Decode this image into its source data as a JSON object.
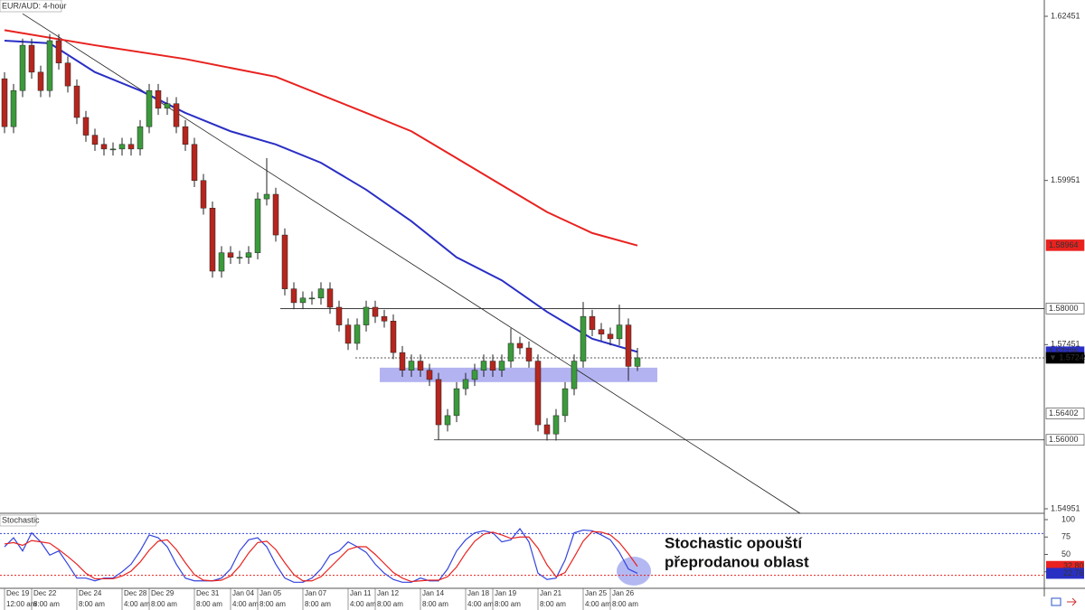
{
  "chart_data": [
    {
      "type": "candlestick",
      "title": "EUR/AUD: 4-hour",
      "open": [
        1.615,
        1.6077,
        1.6132,
        1.6201,
        1.616,
        1.6132,
        1.6208,
        1.6174,
        1.6139,
        1.6091,
        1.6064,
        1.605,
        1.6043,
        1.6043,
        1.605,
        1.6043,
        1.6077,
        1.6132,
        1.6105,
        1.6112,
        1.6077,
        1.605,
        1.5995,
        1.5953,
        1.5857,
        1.5885,
        1.5878,
        1.5878,
        1.5885,
        1.5967,
        1.5974,
        1.5912,
        1.583,
        1.5809,
        1.5816,
        1.5816,
        1.583,
        1.5802,
        1.5775,
        1.5747,
        1.5775,
        1.5802,
        1.5788,
        1.5781,
        1.5733,
        1.5706,
        1.572,
        1.5706,
        1.5692,
        1.5623,
        1.5637,
        1.5678,
        1.5692,
        1.5706,
        1.572,
        1.5706,
        1.572,
        1.5747,
        1.574,
        1.572,
        1.5623,
        1.5609,
        1.5637,
        1.5678,
        1.572,
        1.5788,
        1.5768,
        1.5761,
        1.5754,
        1.5775,
        1.5712
      ],
      "high": [
        1.616,
        1.6142,
        1.6211,
        1.6211,
        1.617,
        1.6218,
        1.6218,
        1.6184,
        1.6149,
        1.6101,
        1.6074,
        1.606,
        1.6053,
        1.606,
        1.606,
        1.6087,
        1.6142,
        1.6142,
        1.6122,
        1.6122,
        1.6087,
        1.606,
        1.6005,
        1.5963,
        1.5895,
        1.5895,
        1.5888,
        1.5895,
        1.5977,
        1.6029,
        1.5984,
        1.5922,
        1.584,
        1.5826,
        1.5826,
        1.584,
        1.584,
        1.5812,
        1.5785,
        1.5785,
        1.5812,
        1.5812,
        1.5798,
        1.5791,
        1.5743,
        1.573,
        1.573,
        1.5716,
        1.5702,
        1.5647,
        1.5688,
        1.5702,
        1.5716,
        1.573,
        1.573,
        1.573,
        1.577,
        1.5757,
        1.575,
        1.573,
        1.5633,
        1.5647,
        1.5688,
        1.573,
        1.581,
        1.5798,
        1.5778,
        1.5771,
        1.5806,
        1.5785,
        1.574
      ],
      "low": [
        1.6067,
        1.6067,
        1.6122,
        1.615,
        1.6122,
        1.6122,
        1.6164,
        1.6129,
        1.6081,
        1.6054,
        1.604,
        1.6033,
        1.6033,
        1.6033,
        1.6033,
        1.6033,
        1.6067,
        1.6095,
        1.6095,
        1.6067,
        1.604,
        1.5985,
        1.5943,
        1.5847,
        1.5847,
        1.5868,
        1.5868,
        1.5868,
        1.5875,
        1.5957,
        1.5902,
        1.582,
        1.5799,
        1.5799,
        1.5806,
        1.5806,
        1.5792,
        1.5765,
        1.5737,
        1.5737,
        1.5765,
        1.5778,
        1.5771,
        1.5723,
        1.5696,
        1.5696,
        1.5696,
        1.5682,
        1.56,
        1.5613,
        1.5627,
        1.5668,
        1.5682,
        1.5696,
        1.5696,
        1.5696,
        1.571,
        1.573,
        1.571,
        1.5613,
        1.5599,
        1.5599,
        1.5627,
        1.5668,
        1.571,
        1.5758,
        1.5751,
        1.5744,
        1.5744,
        1.569,
        1.5705
      ],
      "close": [
        1.6077,
        1.6132,
        1.6201,
        1.616,
        1.6132,
        1.6208,
        1.6174,
        1.6139,
        1.6091,
        1.6064,
        1.605,
        1.6043,
        1.6043,
        1.605,
        1.6043,
        1.6077,
        1.6132,
        1.6105,
        1.6112,
        1.6077,
        1.605,
        1.5995,
        1.5953,
        1.5857,
        1.5885,
        1.5878,
        1.5878,
        1.5885,
        1.5967,
        1.5974,
        1.5912,
        1.583,
        1.5809,
        1.5816,
        1.5816,
        1.583,
        1.5802,
        1.5775,
        1.5747,
        1.5775,
        1.5802,
        1.5788,
        1.5781,
        1.5733,
        1.5706,
        1.572,
        1.5706,
        1.5692,
        1.5623,
        1.5637,
        1.5678,
        1.5692,
        1.5706,
        1.572,
        1.5706,
        1.572,
        1.5747,
        1.574,
        1.572,
        1.5623,
        1.5609,
        1.5637,
        1.5678,
        1.572,
        1.5788,
        1.5768,
        1.5761,
        1.5754,
        1.5775,
        1.5712,
        1.5725
      ],
      "up_color": "#3c9a3c",
      "down_color": "#b5261e",
      "series": [
        {
          "color": "#e8221f",
          "x": [
            0,
            10,
            20,
            30,
            40,
            45,
            50,
            55,
            60,
            65,
            70
          ],
          "values": [
            1.6224,
            1.6201,
            1.618,
            1.6153,
            1.6098,
            1.607,
            1.6029,
            1.5988,
            1.5947,
            1.5915,
            1.5896
          ]
        },
        {
          "color": "#2a2fc4",
          "x": [
            0,
            5,
            10,
            15,
            20,
            25,
            30,
            35,
            40,
            45,
            50,
            55,
            60,
            65,
            70
          ],
          "values": [
            1.6208,
            1.6204,
            1.616,
            1.6132,
            1.6098,
            1.607,
            1.605,
            1.6022,
            1.5981,
            1.5933,
            1.5878,
            1.5843,
            1.5795,
            1.5754,
            1.5734
          ]
        }
      ],
      "trendline": {
        "x": [
          2,
          88
        ],
        "y": [
          1.6249,
          1.5488
        ]
      },
      "levels": [
        {
          "value": 1.58,
          "from": 30.5
        },
        {
          "value": 1.56,
          "from": 47.5
        },
        {
          "value": 1.57249,
          "from": 38.8,
          "dashed": true
        }
      ],
      "zone": {
        "low": 1.5688,
        "high": 1.571,
        "x": [
          41.5,
          72.2
        ],
        "color": "#9999ee"
      },
      "xlim": [
        -0.5,
        115
      ],
      "ylim": [
        1.54882,
        1.62699
      ],
      "yticks": [
        1.62451,
        1.59951,
        1.57451,
        1.54951
      ],
      "price_labels": [
        {
          "value": 1.58964,
          "color": "#e8221f"
        },
        {
          "value": 1.58,
          "label": "1.58000",
          "color": "#ffffff"
        },
        {
          "value": 1.57336,
          "color": "#2a2fc4"
        },
        {
          "value": 1.57249,
          "label": "▼ 1.57249",
          "color": "#000000"
        },
        {
          "value": 1.56402,
          "color": "#ffffff"
        },
        {
          "value": 1.56,
          "label": "1.56000",
          "color": "#ffffff"
        }
      ],
      "xticks": [
        {
          "value": 0,
          "label": "Dec 19",
          "time": "12:00 am"
        },
        {
          "value": 3,
          "label": "Dec 22",
          "time": "8:00 am"
        },
        {
          "value": 8,
          "label": "Dec 24",
          "time": "8:00 am"
        },
        {
          "value": 13,
          "label": "Dec 28",
          "time": "4:00 am"
        },
        {
          "value": 16,
          "label": "Dec 29",
          "time": "8:00 am"
        },
        {
          "value": 21,
          "label": "Dec 31",
          "time": "8:00 am"
        },
        {
          "value": 25,
          "label": "Jan 04",
          "time": "4:00 am"
        },
        {
          "value": 28,
          "label": "Jan 05",
          "time": "8:00 am"
        },
        {
          "value": 33,
          "label": "Jan 07",
          "time": "8:00 am"
        },
        {
          "value": 38,
          "label": "Jan 11",
          "time": "4:00 am"
        },
        {
          "value": 41,
          "label": "Jan 12",
          "time": "8:00 am"
        },
        {
          "value": 46,
          "label": "Jan 14",
          "time": "8:00 am"
        },
        {
          "value": 51,
          "label": "Jan 18",
          "time": "4:00 am"
        },
        {
          "value": 54,
          "label": "Jan 19",
          "time": "8:00 am"
        },
        {
          "value": 59,
          "label": "Jan 21",
          "time": "8:00 am"
        },
        {
          "value": 64,
          "label": "Jan 25",
          "time": "4:00 am"
        },
        {
          "value": 67,
          "label": "Jan 26",
          "time": "8:00 am"
        }
      ]
    },
    {
      "type": "line",
      "title": "Stochastic",
      "series": [
        {
          "color": "#3344dd",
          "values": [
            61,
            74,
            55,
            81,
            68,
            49,
            55,
            36,
            16,
            16,
            12,
            16,
            16,
            25,
            36,
            55,
            78,
            74,
            61,
            36,
            16,
            12,
            12,
            12,
            16,
            29,
            55,
            71,
            74,
            61,
            36,
            16,
            10,
            10,
            16,
            29,
            49,
            55,
            68,
            61,
            53,
            36,
            23,
            14,
            10,
            10,
            16,
            12,
            12,
            29,
            55,
            71,
            81,
            84,
            81,
            68,
            71,
            87,
            68,
            23,
            14,
            16,
            42,
            81,
            85,
            84,
            78,
            71,
            53,
            29,
            22.76
          ]
        },
        {
          "color": "#e8221f",
          "values": [
            65,
            67,
            63,
            70,
            68,
            66,
            57,
            47,
            36,
            23,
            15,
            15,
            15,
            19,
            26,
            39,
            56,
            69,
            71,
            57,
            38,
            21,
            13,
            12,
            13,
            19,
            33,
            52,
            67,
            69,
            57,
            38,
            21,
            12,
            12,
            18,
            31,
            44,
            57,
            61,
            61,
            50,
            37,
            24,
            16,
            11,
            12,
            13,
            13,
            18,
            32,
            52,
            69,
            79,
            82,
            78,
            73,
            75,
            75,
            59,
            35,
            18,
            24,
            46,
            69,
            83,
            82,
            78,
            67,
            51,
            32.8
          ]
        }
      ],
      "levels": [
        {
          "value": 80,
          "color": "#3344dd"
        },
        {
          "value": 20,
          "color": "#e8221f"
        }
      ],
      "xlim": [
        -0.5,
        115
      ],
      "ylim": [
        0,
        100
      ],
      "yticks": [
        100,
        75,
        50,
        25
      ],
      "markers": [
        {
          "value": 32.8,
          "label": "32.80",
          "color": "#e8221f"
        },
        {
          "value": 22.76,
          "color": "#2a2fc4"
        }
      ],
      "annotation": [
        "Stochastic opouští",
        "přeprodanou oblast"
      ]
    }
  ]
}
